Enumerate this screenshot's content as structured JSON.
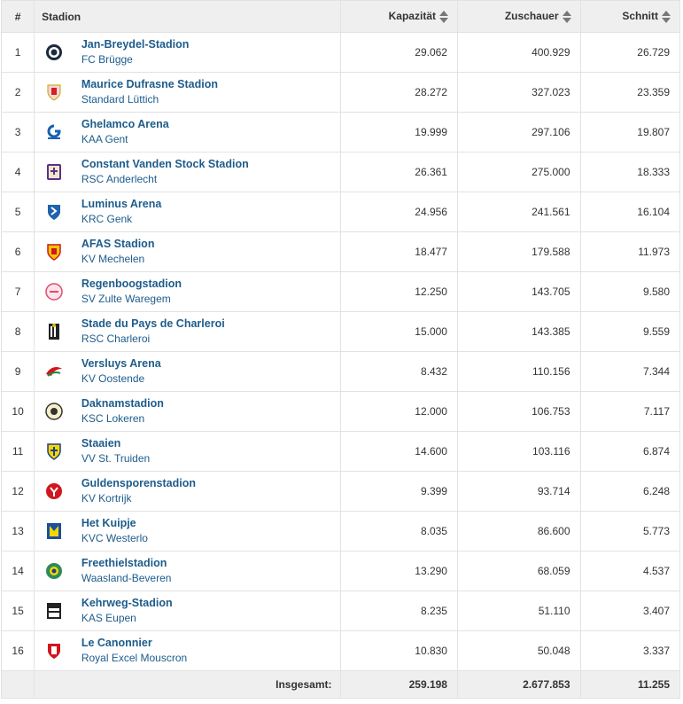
{
  "header": {
    "num": "#",
    "stadium": "Stadion",
    "capacity": "Kapazität",
    "spectators": "Zuschauer",
    "average": "Schnitt"
  },
  "rows": [
    {
      "rank": "1",
      "stadium": "Jan-Breydel-Stadion",
      "club": "FC Brügge",
      "capacity": "29.062",
      "spectators": "400.929",
      "average": "26.729",
      "logo": "club-brugge-logo"
    },
    {
      "rank": "2",
      "stadium": "Maurice Dufrasne Stadion",
      "club": "Standard Lüttich",
      "capacity": "28.272",
      "spectators": "327.023",
      "average": "23.359",
      "logo": "standard-liege-logo"
    },
    {
      "rank": "3",
      "stadium": "Ghelamco Arena",
      "club": "KAA Gent",
      "capacity": "19.999",
      "spectators": "297.106",
      "average": "19.807",
      "logo": "kaa-gent-logo"
    },
    {
      "rank": "4",
      "stadium": "Constant Vanden Stock Stadion",
      "club": "RSC Anderlecht",
      "capacity": "26.361",
      "spectators": "275.000",
      "average": "18.333",
      "logo": "anderlecht-logo"
    },
    {
      "rank": "5",
      "stadium": "Luminus Arena",
      "club": "KRC Genk",
      "capacity": "24.956",
      "spectators": "241.561",
      "average": "16.104",
      "logo": "krc-genk-logo"
    },
    {
      "rank": "6",
      "stadium": "AFAS Stadion",
      "club": "KV Mechelen",
      "capacity": "18.477",
      "spectators": "179.588",
      "average": "11.973",
      "logo": "kv-mechelen-logo"
    },
    {
      "rank": "7",
      "stadium": "Regenboogstadion",
      "club": "SV Zulte Waregem",
      "capacity": "12.250",
      "spectators": "143.705",
      "average": "9.580",
      "logo": "zulte-waregem-logo"
    },
    {
      "rank": "8",
      "stadium": "Stade du Pays de Charleroi",
      "club": "RSC Charleroi",
      "capacity": "15.000",
      "spectators": "143.385",
      "average": "9.559",
      "logo": "charleroi-logo"
    },
    {
      "rank": "9",
      "stadium": "Versluys Arena",
      "club": "KV Oostende",
      "capacity": "8.432",
      "spectators": "110.156",
      "average": "7.344",
      "logo": "kv-oostende-logo"
    },
    {
      "rank": "10",
      "stadium": "Daknamstadion",
      "club": "KSC Lokeren",
      "capacity": "12.000",
      "spectators": "106.753",
      "average": "7.117",
      "logo": "ksc-lokeren-logo"
    },
    {
      "rank": "11",
      "stadium": "Staaien",
      "club": "VV St. Truiden",
      "capacity": "14.600",
      "spectators": "103.116",
      "average": "6.874",
      "logo": "st-truiden-logo"
    },
    {
      "rank": "12",
      "stadium": "Guldensporenstadion",
      "club": "KV Kortrijk",
      "capacity": "9.399",
      "spectators": "93.714",
      "average": "6.248",
      "logo": "kv-kortrijk-logo"
    },
    {
      "rank": "13",
      "stadium": "Het Kuipje",
      "club": "KVC Westerlo",
      "capacity": "8.035",
      "spectators": "86.600",
      "average": "5.773",
      "logo": "westerlo-logo"
    },
    {
      "rank": "14",
      "stadium": "Freethielstadion",
      "club": "Waasland-Beveren",
      "capacity": "13.290",
      "spectators": "68.059",
      "average": "4.537",
      "logo": "waasland-beveren-logo"
    },
    {
      "rank": "15",
      "stadium": "Kehrweg-Stadion",
      "club": "KAS Eupen",
      "capacity": "8.235",
      "spectators": "51.110",
      "average": "3.407",
      "logo": "kas-eupen-logo"
    },
    {
      "rank": "16",
      "stadium": "Le Canonnier",
      "club": "Royal Excel Mouscron",
      "capacity": "10.830",
      "spectators": "50.048",
      "average": "3.337",
      "logo": "mouscron-logo"
    }
  ],
  "footer": {
    "label": "Insgesamt:",
    "capacity": "259.198",
    "spectators": "2.677.853",
    "average": "11.255"
  },
  "colors": {
    "link": "#1d5c8b",
    "header_bg": "#efefef",
    "border": "#e2e2e2"
  }
}
